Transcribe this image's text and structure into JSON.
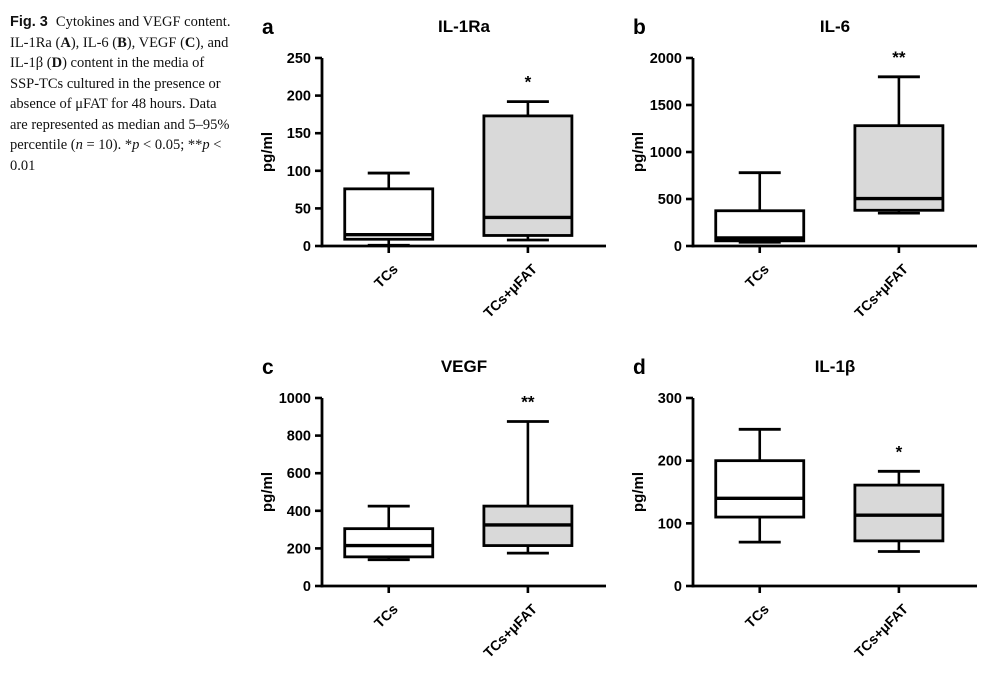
{
  "figure": {
    "caption": {
      "segments": [
        {
          "text": "Fig. 3  ",
          "style": "bold-label"
        },
        {
          "text": "Cytokines and VEGF content. IL-1Ra (",
          "style": "normal"
        },
        {
          "text": "A",
          "style": "bold"
        },
        {
          "text": "), IL-6 (",
          "style": "normal"
        },
        {
          "text": "B",
          "style": "bold"
        },
        {
          "text": "), VEGF (",
          "style": "normal"
        },
        {
          "text": "C",
          "style": "bold"
        },
        {
          "text": "), and IL-1β (",
          "style": "normal"
        },
        {
          "text": "D",
          "style": "bold"
        },
        {
          "text": ") content in the media of SSP-TCs cultured in the presence or absence of μFAT for 48 hours. Data are represented as median and 5–95% percentile (",
          "style": "normal"
        },
        {
          "text": "n",
          "style": "italic"
        },
        {
          "text": " = 10). *",
          "style": "normal"
        },
        {
          "text": "p",
          "style": "italic"
        },
        {
          "text": " < 0.05; **",
          "style": "normal"
        },
        {
          "text": "p",
          "style": "italic"
        },
        {
          "text": " < 0.01",
          "style": "normal"
        }
      ]
    }
  },
  "colors": {
    "ink": "#000000",
    "background": "#ffffff",
    "box_fill_control": "#ffffff",
    "box_fill_treated": "#d9d9d9"
  },
  "chart_data": [
    {
      "type": "box",
      "letter": "a",
      "title": "IL-1Ra",
      "ylabel": "pg/ml",
      "ylim": [
        0,
        250
      ],
      "yticks": [
        0,
        50,
        100,
        150,
        200,
        250
      ],
      "categories": [
        "TCs",
        "TCs+μFAT"
      ],
      "groups": [
        {
          "label": "TCs",
          "fill": "#ffffff",
          "whisker_low": 1,
          "q1": 9,
          "median": 15,
          "q3": 76,
          "whisker_high": 97,
          "significance": ""
        },
        {
          "label": "TCs+μFAT",
          "fill": "#d9d9d9",
          "whisker_low": 8,
          "q1": 14,
          "median": 38,
          "q3": 173,
          "whisker_high": 192,
          "significance": "*"
        }
      ]
    },
    {
      "type": "box",
      "letter": "b",
      "title": "IL-6",
      "ylabel": "pg/ml",
      "ylim": [
        0,
        2000
      ],
      "yticks": [
        0,
        500,
        1000,
        1500,
        2000
      ],
      "categories": [
        "TCs",
        "TCs+μFAT"
      ],
      "groups": [
        {
          "label": "TCs",
          "fill": "#ffffff",
          "whisker_low": 40,
          "q1": 55,
          "median": 85,
          "q3": 375,
          "whisker_high": 780,
          "significance": ""
        },
        {
          "label": "TCs+μFAT",
          "fill": "#d9d9d9",
          "whisker_low": 350,
          "q1": 380,
          "median": 505,
          "q3": 1280,
          "whisker_high": 1800,
          "significance": "**"
        }
      ]
    },
    {
      "type": "box",
      "letter": "c",
      "title": "VEGF",
      "ylabel": "pg/ml",
      "ylim": [
        0,
        1000
      ],
      "yticks": [
        0,
        200,
        400,
        600,
        800,
        1000
      ],
      "categories": [
        "TCs",
        "TCs+μFAT"
      ],
      "groups": [
        {
          "label": "TCs",
          "fill": "#ffffff",
          "whisker_low": 140,
          "q1": 155,
          "median": 215,
          "q3": 305,
          "whisker_high": 425,
          "significance": ""
        },
        {
          "label": "TCs+μFAT",
          "fill": "#d9d9d9",
          "whisker_low": 175,
          "q1": 215,
          "median": 325,
          "q3": 425,
          "whisker_high": 875,
          "significance": "**"
        }
      ]
    },
    {
      "type": "box",
      "letter": "d",
      "title": "IL-1β",
      "ylabel": "pg/ml",
      "ylim": [
        0,
        300
      ],
      "yticks": [
        0,
        100,
        200,
        300
      ],
      "categories": [
        "TCs",
        "TCs+μFAT"
      ],
      "groups": [
        {
          "label": "TCs",
          "fill": "#ffffff",
          "whisker_low": 70,
          "q1": 110,
          "median": 140,
          "q3": 200,
          "whisker_high": 250,
          "significance": ""
        },
        {
          "label": "TCs+μFAT",
          "fill": "#d9d9d9",
          "whisker_low": 55,
          "q1": 72,
          "median": 113,
          "q3": 161,
          "whisker_high": 183,
          "significance": "*"
        }
      ]
    }
  ]
}
